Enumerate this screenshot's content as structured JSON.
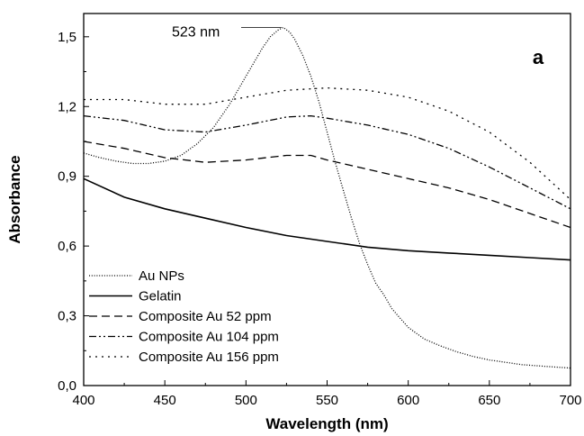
{
  "chart_data": {
    "type": "line",
    "panel_label": "a",
    "xlabel": "Wavelength (nm)",
    "ylabel": "Absorbance",
    "xlim": [
      400,
      700
    ],
    "ylim": [
      0.0,
      1.6
    ],
    "x_ticks": [
      400,
      450,
      500,
      550,
      600,
      650,
      700
    ],
    "x_tick_labels": [
      "400",
      "450",
      "500",
      "550",
      "600",
      "650",
      "700"
    ],
    "y_ticks": [
      0.0,
      0.3,
      0.6,
      0.9,
      1.2,
      1.5
    ],
    "y_tick_labels": [
      "0,0",
      "0,3",
      "0,6",
      "0,9",
      "1,2",
      "1,5"
    ],
    "grid": false,
    "legend_position": "bottom-left",
    "annotation": {
      "text": "523 nm",
      "x": 523,
      "y": 1.54
    },
    "series": [
      {
        "name": "Au NPs",
        "dash": "dotted-fine",
        "x": [
          400,
          410,
          420,
          430,
          440,
          450,
          460,
          470,
          480,
          490,
          500,
          510,
          515,
          520,
          523,
          527,
          530,
          535,
          540,
          545,
          550,
          555,
          560,
          565,
          570,
          575,
          580,
          585,
          590,
          600,
          610,
          620,
          630,
          640,
          650,
          660,
          670,
          680,
          690,
          700
        ],
        "values": [
          1.0,
          0.98,
          0.965,
          0.955,
          0.955,
          0.965,
          0.99,
          1.04,
          1.11,
          1.21,
          1.33,
          1.45,
          1.5,
          1.53,
          1.54,
          1.52,
          1.49,
          1.42,
          1.33,
          1.22,
          1.09,
          0.96,
          0.84,
          0.72,
          0.61,
          0.52,
          0.44,
          0.39,
          0.33,
          0.25,
          0.2,
          0.17,
          0.145,
          0.125,
          0.11,
          0.1,
          0.09,
          0.085,
          0.08,
          0.075
        ]
      },
      {
        "name": "Gelatin",
        "dash": "solid",
        "x": [
          400,
          425,
          450,
          475,
          500,
          525,
          550,
          575,
          600,
          625,
          650,
          675,
          700
        ],
        "values": [
          0.89,
          0.81,
          0.76,
          0.72,
          0.68,
          0.645,
          0.62,
          0.595,
          0.58,
          0.57,
          0.56,
          0.55,
          0.54
        ]
      },
      {
        "name": "Composite Au 52 ppm",
        "dash": "dashed",
        "x": [
          400,
          425,
          450,
          475,
          500,
          525,
          540,
          550,
          575,
          600,
          625,
          650,
          675,
          700
        ],
        "values": [
          1.05,
          1.02,
          0.98,
          0.96,
          0.97,
          0.99,
          0.99,
          0.97,
          0.93,
          0.89,
          0.85,
          0.8,
          0.74,
          0.68
        ]
      },
      {
        "name": "Composite Au 104 ppm",
        "dash": "dash-dot-dot",
        "x": [
          400,
          425,
          450,
          475,
          500,
          525,
          540,
          550,
          575,
          600,
          625,
          650,
          675,
          700
        ],
        "values": [
          1.16,
          1.14,
          1.1,
          1.09,
          1.12,
          1.155,
          1.16,
          1.15,
          1.12,
          1.08,
          1.02,
          0.94,
          0.85,
          0.76
        ]
      },
      {
        "name": "Composite Au 156 ppm",
        "dash": "short-dotted",
        "x": [
          400,
          425,
          450,
          475,
          500,
          525,
          550,
          575,
          600,
          625,
          650,
          675,
          700
        ],
        "values": [
          1.23,
          1.23,
          1.21,
          1.21,
          1.24,
          1.27,
          1.28,
          1.27,
          1.24,
          1.18,
          1.09,
          0.96,
          0.8
        ]
      }
    ]
  }
}
